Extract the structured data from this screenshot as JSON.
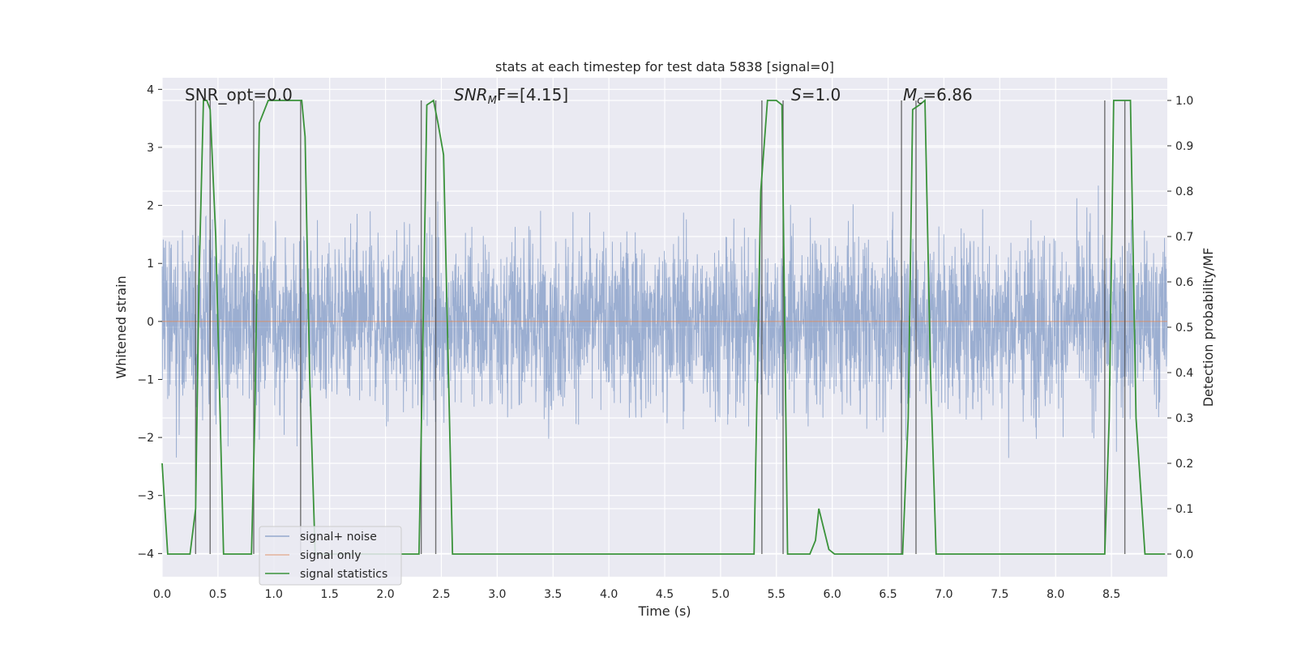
{
  "chart_data": {
    "type": "line",
    "title": "stats at each timestep for test data 5838 [signal=0]",
    "xlabel": "Time (s)",
    "ylabel_left": "Whitened strain",
    "ylabel_right": "Detection probability/MF",
    "xlim": [
      0.0,
      9.0
    ],
    "ylim_left": [
      -4.4,
      4.2
    ],
    "ylim_right": [
      -0.05,
      1.05
    ],
    "x_ticks": [
      "0.0",
      "0.5",
      "1.0",
      "1.5",
      "2.0",
      "2.5",
      "3.0",
      "3.5",
      "4.0",
      "4.5",
      "5.0",
      "5.5",
      "6.0",
      "6.5",
      "7.0",
      "7.5",
      "8.0",
      "8.5"
    ],
    "y_left_ticks": [
      "−4",
      "−3",
      "−2",
      "−1",
      "0",
      "1",
      "2",
      "3",
      "4"
    ],
    "y_right_ticks": [
      "0.0",
      "0.1",
      "0.2",
      "0.3",
      "0.4",
      "0.5",
      "0.6",
      "0.7",
      "0.8",
      "0.9",
      "1.0"
    ],
    "annotations": [
      "SNR_opt=0.0",
      "SNR",
      "M",
      "F=[4.15]",
      "S",
      "=1.0",
      "M",
      "c",
      "=6.86"
    ],
    "legend": [
      "signal+ noise",
      "signal only",
      "signal statistics"
    ],
    "colors": {
      "noise": "#4c72b0",
      "signal": "#dd8452",
      "stats": "#3a923a",
      "grid": "#ffffff",
      "background": "#eaeaf2",
      "vline": "#444444"
    },
    "series": [
      {
        "name": "signal statistics",
        "x": [
          0.0,
          0.05,
          0.15,
          0.25,
          0.3,
          0.33,
          0.37,
          0.4,
          0.43,
          0.48,
          0.55,
          0.6,
          0.7,
          0.8,
          0.83,
          0.87,
          0.95,
          1.0,
          1.1,
          1.2,
          1.25,
          1.28,
          1.32,
          1.37,
          1.42,
          1.5,
          1.8,
          2.1,
          2.3,
          2.33,
          2.37,
          2.43,
          2.47,
          2.52,
          2.6,
          3.0,
          4.0,
          5.0,
          5.3,
          5.36,
          5.42,
          5.46,
          5.5,
          5.55,
          5.6,
          5.7,
          5.8,
          5.85,
          5.88,
          5.92,
          5.97,
          6.02,
          6.1,
          6.3,
          6.5,
          6.63,
          6.68,
          6.72,
          6.78,
          6.83,
          6.88,
          6.93,
          7.0,
          7.5,
          7.8,
          8.0,
          8.2,
          8.44,
          8.48,
          8.52,
          8.58,
          8.63,
          8.67,
          8.72,
          8.8,
          8.9,
          8.98
        ],
        "values": [
          0.2,
          0.0,
          0.0,
          0.0,
          0.1,
          0.6,
          1.0,
          1.0,
          0.98,
          0.7,
          0.0,
          0.0,
          0.0,
          0.0,
          0.3,
          0.95,
          1.0,
          1.0,
          1.0,
          1.0,
          1.0,
          0.92,
          0.4,
          0.0,
          0.0,
          0.0,
          0.0,
          0.0,
          0.0,
          0.4,
          0.99,
          1.0,
          0.95,
          0.88,
          0.0,
          0.0,
          0.0,
          0.0,
          0.0,
          0.8,
          1.0,
          1.0,
          1.0,
          0.99,
          0.0,
          0.0,
          0.0,
          0.03,
          0.1,
          0.06,
          0.01,
          0.0,
          0.0,
          0.0,
          0.0,
          0.0,
          0.3,
          0.98,
          0.99,
          1.0,
          0.4,
          0.0,
          0.0,
          0.0,
          0.0,
          0.0,
          0.0,
          0.0,
          0.3,
          1.0,
          1.0,
          1.0,
          1.0,
          0.3,
          0.0,
          0.0,
          0.0
        ]
      },
      {
        "name": "signal only",
        "x": [
          0.0,
          9.0
        ],
        "values": [
          0.0,
          0.0
        ]
      }
    ],
    "vlines_x": [
      0.3,
      0.43,
      0.82,
      1.24,
      2.32,
      2.45,
      5.37,
      5.56,
      6.62,
      6.75,
      8.44,
      8.62
    ]
  }
}
